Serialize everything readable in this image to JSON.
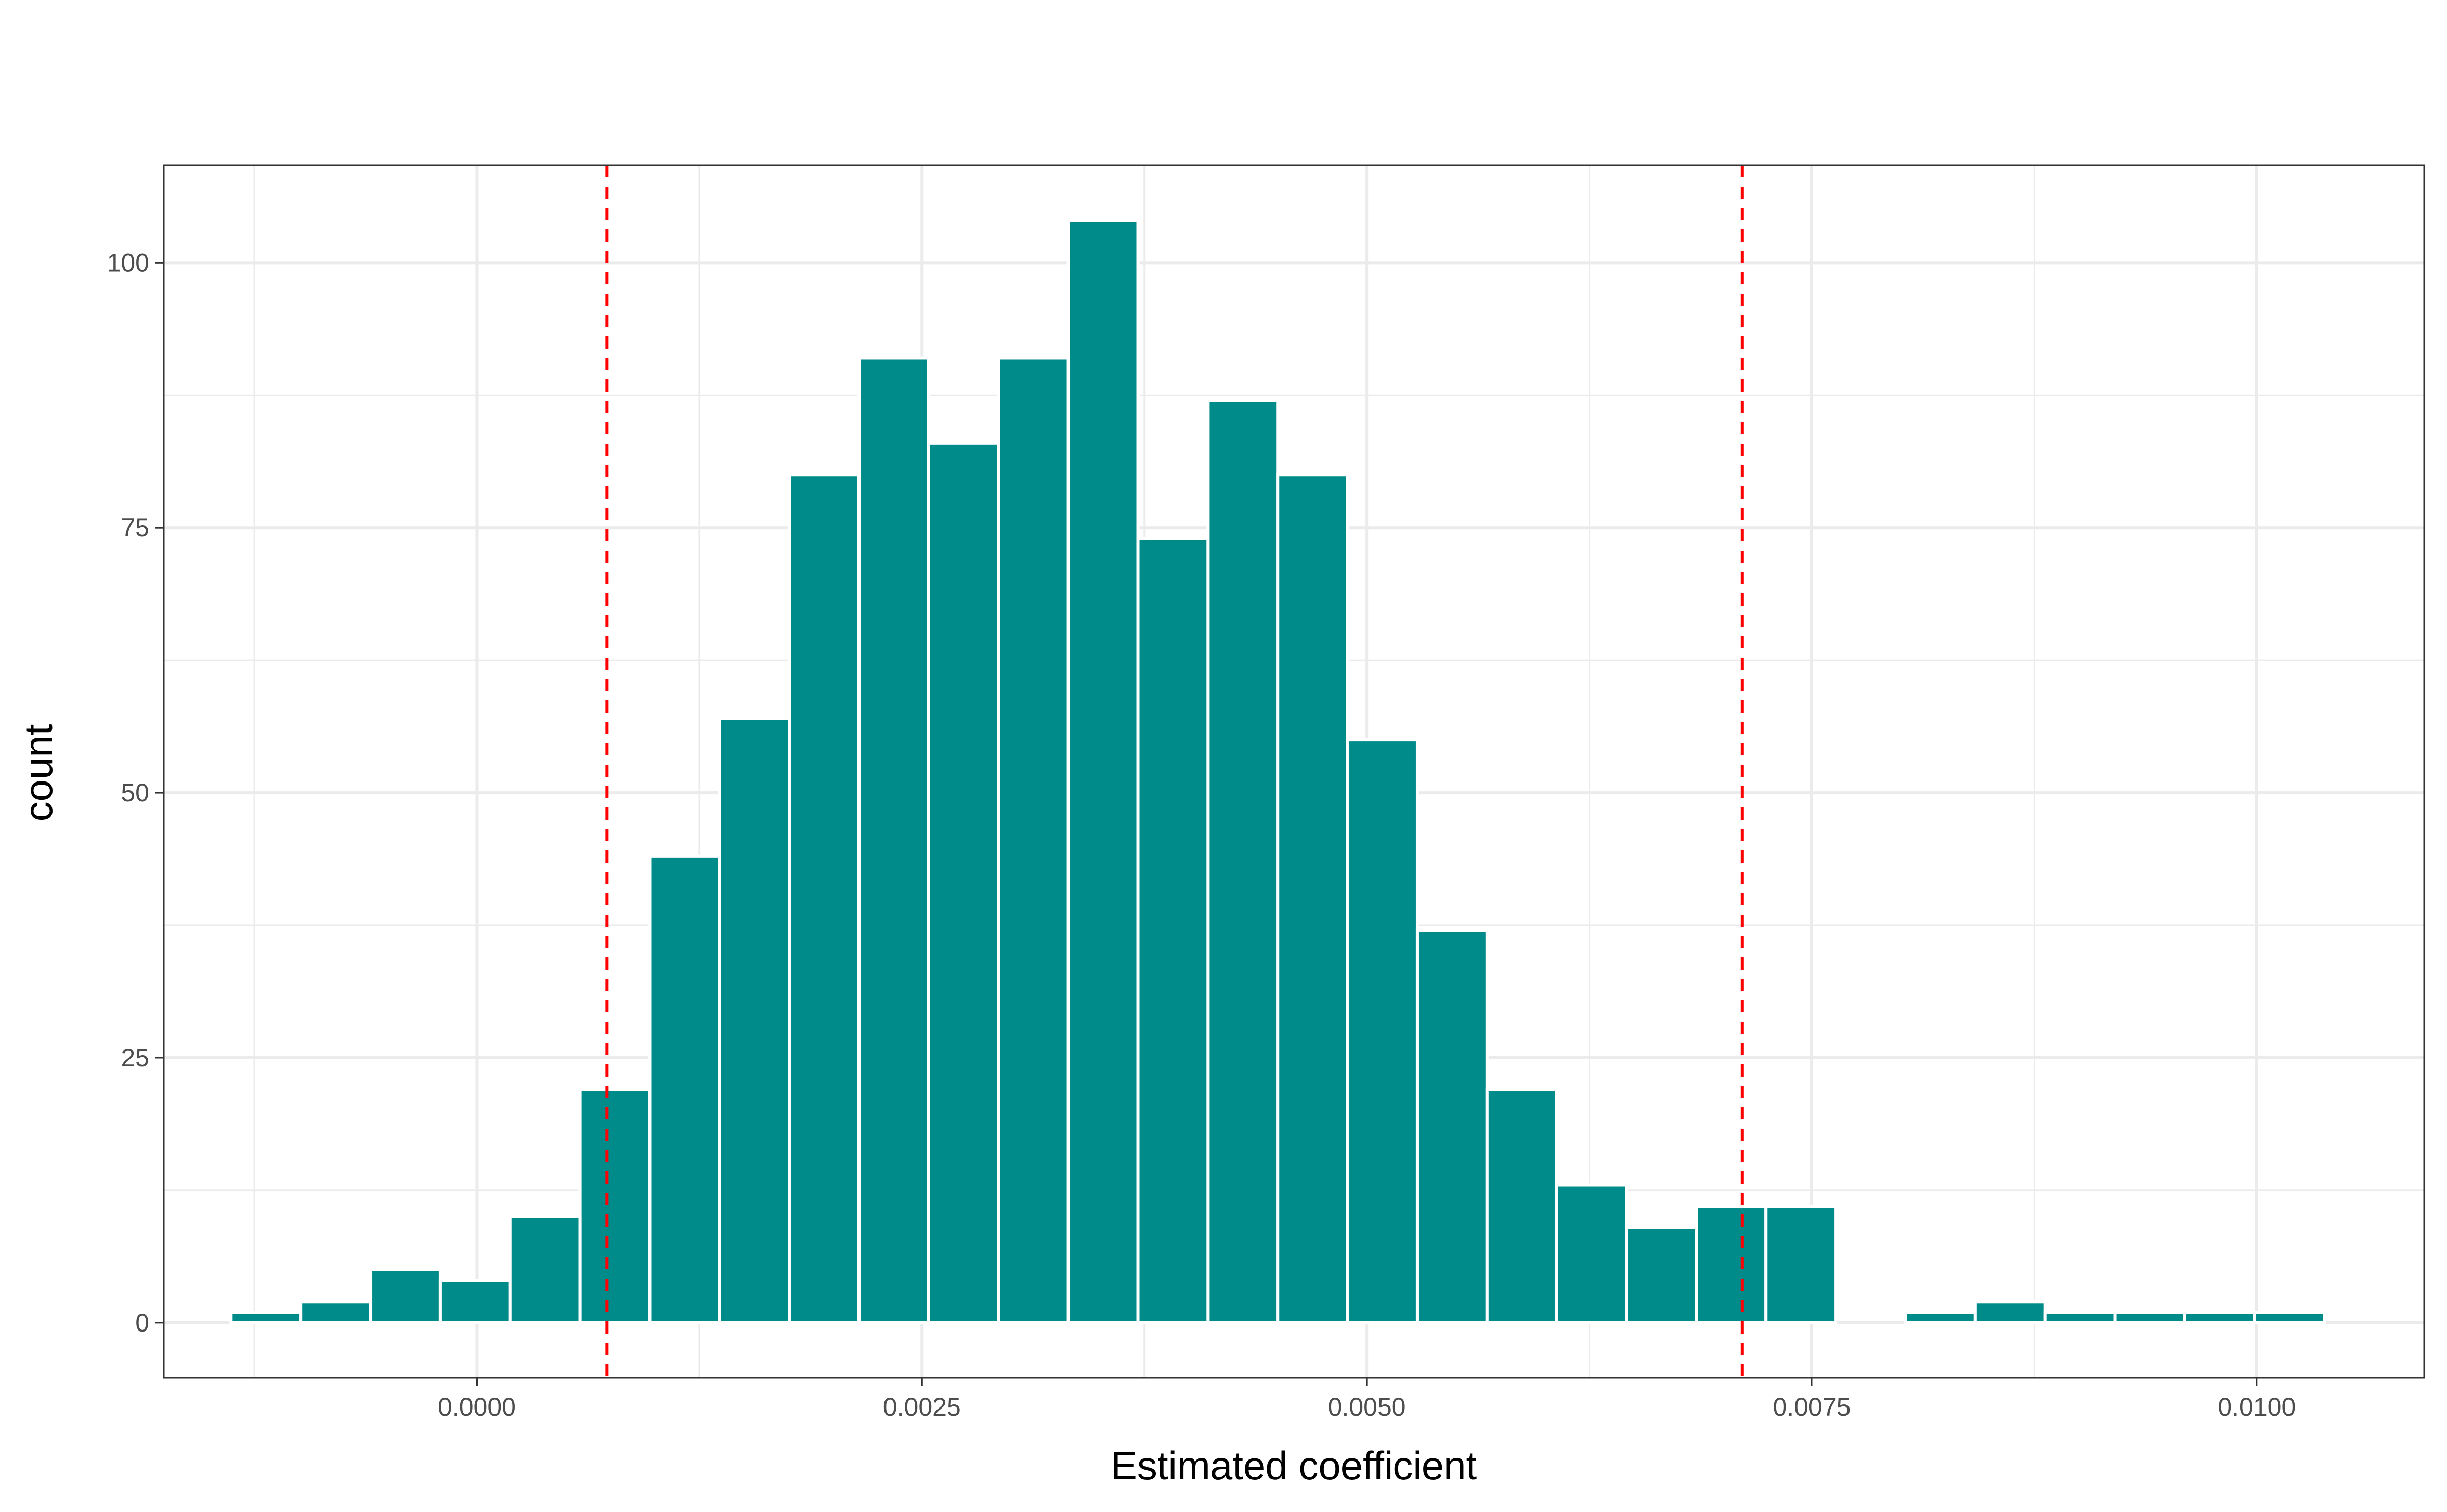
{
  "chart_data": {
    "type": "bar",
    "xlabel": "Estimated coefficient",
    "ylabel": "count",
    "xlim": [
      -0.00176,
      0.01094
    ],
    "ylim": [
      -5.2,
      109.2
    ],
    "x_ticks": [
      0.0,
      0.0025,
      0.005,
      0.0075,
      0.01
    ],
    "x_tick_labels": [
      "0.0000",
      "0.0025",
      "0.0050",
      "0.0075",
      "0.0100"
    ],
    "y_ticks": [
      0,
      25,
      50,
      75,
      100
    ],
    "y_tick_labels": [
      "0",
      "25",
      "50",
      "75",
      "100"
    ],
    "grid": true,
    "bin_width": 0.000392,
    "bins": [
      {
        "x": -0.001185,
        "count": 1
      },
      {
        "x": -0.000793,
        "count": 2
      },
      {
        "x": -0.000401,
        "count": 5
      },
      {
        "x": -9e-06,
        "count": 4
      },
      {
        "x": 0.000383,
        "count": 10
      },
      {
        "x": 0.000775,
        "count": 22
      },
      {
        "x": 0.001167,
        "count": 44
      },
      {
        "x": 0.001559,
        "count": 57
      },
      {
        "x": 0.001951,
        "count": 80
      },
      {
        "x": 0.002343,
        "count": 91
      },
      {
        "x": 0.002735,
        "count": 83
      },
      {
        "x": 0.003127,
        "count": 91
      },
      {
        "x": 0.003519,
        "count": 104
      },
      {
        "x": 0.003911,
        "count": 74
      },
      {
        "x": 0.004303,
        "count": 87
      },
      {
        "x": 0.004695,
        "count": 80
      },
      {
        "x": 0.005087,
        "count": 55
      },
      {
        "x": 0.005479,
        "count": 37
      },
      {
        "x": 0.005871,
        "count": 22
      },
      {
        "x": 0.006263,
        "count": 13
      },
      {
        "x": 0.006655,
        "count": 9
      },
      {
        "x": 0.007047,
        "count": 11
      },
      {
        "x": 0.007439,
        "count": 11
      },
      {
        "x": 0.007831,
        "count": 0
      },
      {
        "x": 0.008223,
        "count": 1
      },
      {
        "x": 0.008615,
        "count": 2
      },
      {
        "x": 0.009007,
        "count": 1
      },
      {
        "x": 0.009399,
        "count": 1
      },
      {
        "x": 0.009791,
        "count": 1
      },
      {
        "x": 0.010183,
        "count": 1
      }
    ],
    "reference_lines": [
      {
        "x": 0.00073,
        "style": "dashed",
        "color": "#ff0000"
      },
      {
        "x": 0.00711,
        "style": "dashed",
        "color": "#ff0000"
      }
    ],
    "bar_color": "#008B8B",
    "bar_outline": "#ffffff"
  }
}
